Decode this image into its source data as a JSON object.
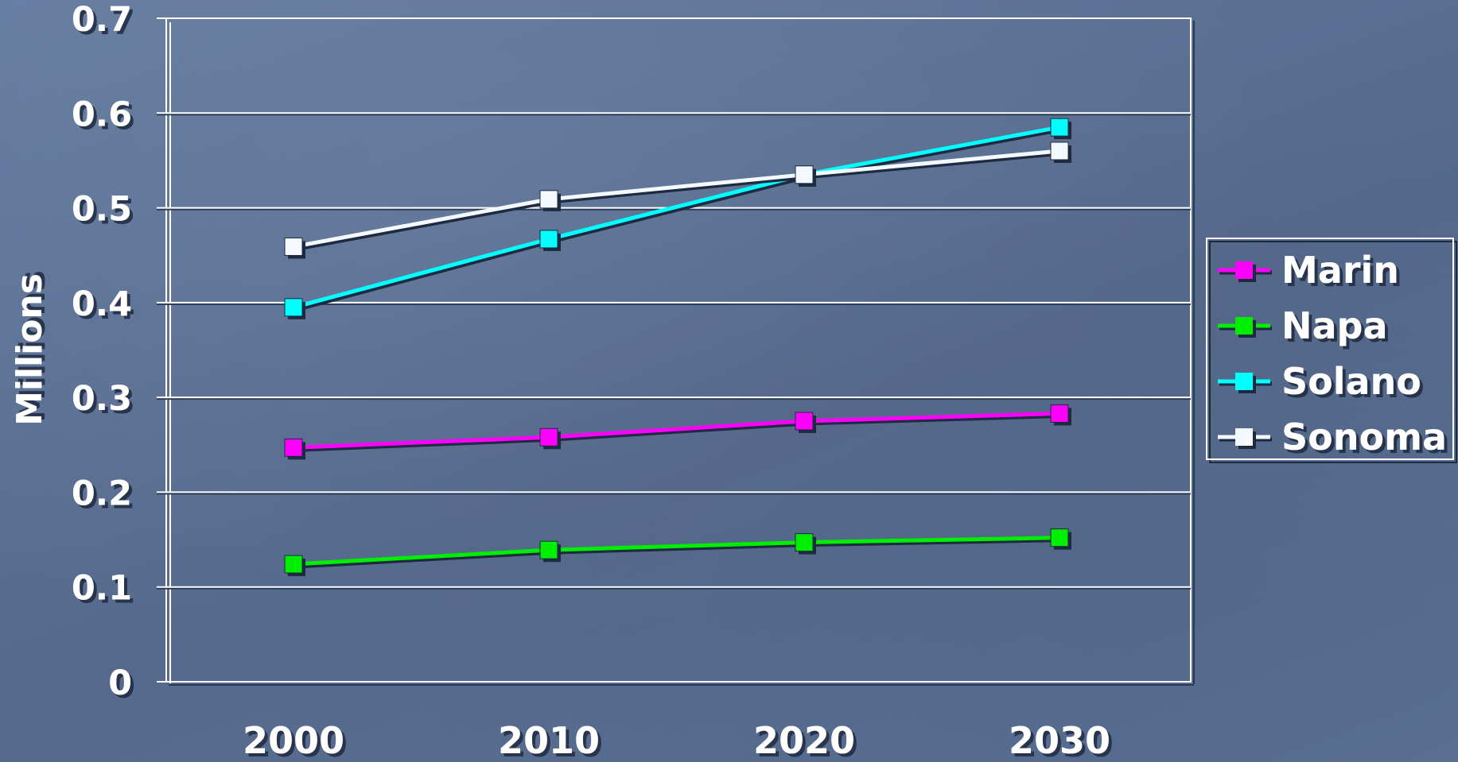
{
  "chart_data": {
    "type": "line",
    "x": [
      2000,
      2010,
      2020,
      2030
    ],
    "categories": [
      "2000",
      "2010",
      "2020",
      "2030"
    ],
    "ylabel": "Millions",
    "xlabel": "",
    "ylim": [
      0,
      0.7
    ],
    "yticks": [
      "0",
      "0.1",
      "0.2",
      "0.3",
      "0.4",
      "0.5",
      "0.6",
      "0.7"
    ],
    "ytick_values": [
      0,
      0.1,
      0.2,
      0.3,
      0.4,
      0.5,
      0.6,
      0.7
    ],
    "grid": "horizontal",
    "legend_position": "right",
    "series": [
      {
        "name": "Marin",
        "color": "#ff00ff",
        "values": [
          0.247,
          0.258,
          0.275,
          0.283
        ]
      },
      {
        "name": "Napa",
        "color": "#00ee00",
        "values": [
          0.124,
          0.139,
          0.147,
          0.152
        ]
      },
      {
        "name": "Solano",
        "color": "#00ffff",
        "values": [
          0.395,
          0.467,
          0.535,
          0.585
        ]
      },
      {
        "name": "Sonoma",
        "color": "#f4f9ff",
        "values": [
          0.459,
          0.509,
          0.535,
          0.56
        ]
      }
    ]
  }
}
